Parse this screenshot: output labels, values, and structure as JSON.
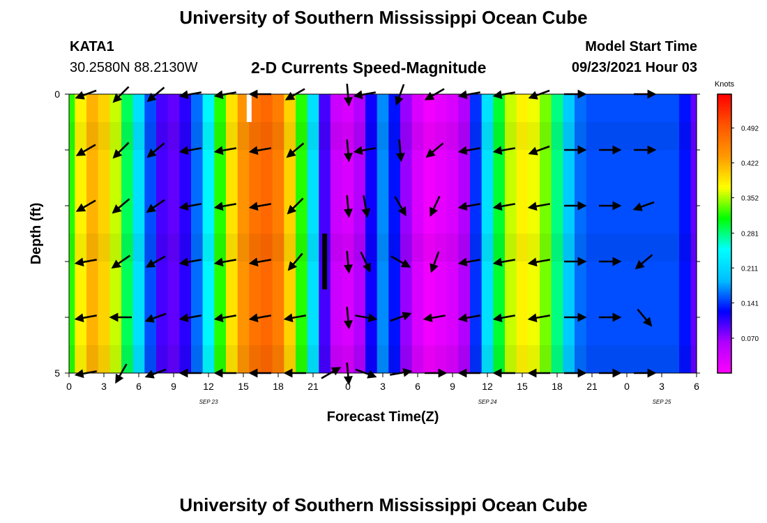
{
  "header": {
    "title": "University of Southern Mississippi Ocean Cube",
    "station": "KATA1",
    "coordinates": "30.2580N  88.2130W",
    "subtitle": "2-D Currents Speed-Magnitude",
    "model_start_label": "Model Start Time",
    "model_start_value": "09/23/2021 Hour 03"
  },
  "footer": {
    "title": "University of Southern Mississippi Ocean Cube"
  },
  "colors": {
    "scale": [
      "#ff00ff",
      "#b000ff",
      "#0000ff",
      "#00bfff",
      "#00ffff",
      "#00ff00",
      "#ffff00",
      "#ff9900",
      "#ff5500",
      "#ff0000"
    ],
    "arrow": "#000000"
  },
  "chart_data": {
    "type": "heatmap",
    "title": "2-D Currents Speed-Magnitude",
    "xlabel": "Forecast Time(Z)",
    "ylabel": "Depth (ft)",
    "colorbar_label": "Knots",
    "x_tick_labels": [
      "0",
      "3",
      "6",
      "9",
      "12",
      "15",
      "18",
      "21",
      "0",
      "3",
      "6",
      "9",
      "12",
      "15",
      "18",
      "21",
      "0",
      "3",
      "6"
    ],
    "date_labels": [
      {
        "label": "SEP 23",
        "hour": 12
      },
      {
        "label": "SEP 24",
        "hour": 36
      },
      {
        "label": "SEP 25",
        "hour": 51
      }
    ],
    "y_tick_labels": [
      "0",
      "5"
    ],
    "ylim": [
      0,
      5
    ],
    "xlim_hours": [
      0,
      54
    ],
    "colorbar_ticks": [
      0.07,
      0.141,
      0.211,
      0.281,
      0.352,
      0.422,
      0.492
    ],
    "colorbar_range": [
      0.0,
      0.56
    ],
    "hours": [
      0,
      1,
      2,
      3,
      4,
      5,
      6,
      7,
      8,
      9,
      10,
      11,
      12,
      13,
      14,
      15,
      16,
      17,
      18,
      19,
      20,
      21,
      22,
      23,
      24,
      25,
      26,
      27,
      28,
      29,
      30,
      31,
      32,
      33,
      34,
      35,
      36,
      37,
      38,
      39,
      40,
      41,
      42,
      43,
      44,
      45,
      46,
      47,
      48,
      49,
      50,
      51,
      52,
      53,
      54
    ],
    "speed_knots": [
      0.32,
      0.38,
      0.42,
      0.4,
      0.36,
      0.29,
      0.22,
      0.15,
      0.1,
      0.09,
      0.11,
      0.16,
      0.24,
      0.32,
      0.39,
      0.44,
      0.47,
      0.48,
      0.46,
      0.4,
      0.32,
      0.22,
      0.1,
      0.04,
      0.03,
      0.06,
      0.12,
      0.17,
      0.13,
      0.07,
      0.03,
      0.01,
      0.02,
      0.03,
      0.06,
      0.14,
      0.22,
      0.3,
      0.36,
      0.38,
      0.37,
      0.34,
      0.28,
      0.2,
      0.16,
      0.15,
      0.15,
      0.15,
      0.15,
      0.15,
      0.15,
      0.15,
      0.15,
      0.13,
      0.09
    ],
    "vector_hours": [
      1.5,
      4.5,
      7.5,
      10.5,
      13.5,
      16.5,
      19.5,
      22.5,
      24,
      25.5,
      28.5,
      31.5,
      34.5,
      37.5,
      40.5,
      43.5,
      46.5,
      49.5,
      52.5
    ],
    "vector_depths": [
      0,
      1,
      2,
      3,
      4,
      5
    ],
    "vector_angles_deg": [
      [
        200,
        210,
        210,
        190,
        190,
        190
      ],
      [
        225,
        225,
        220,
        215,
        180,
        240
      ],
      [
        220,
        220,
        215,
        210,
        200,
        200
      ],
      [
        190,
        190,
        190,
        190,
        190,
        180
      ],
      [
        190,
        190,
        190,
        190,
        190,
        180
      ],
      [
        180,
        190,
        190,
        190,
        190,
        180
      ],
      [
        210,
        220,
        225,
        230,
        190,
        180
      ],
      [
        null,
        null,
        null,
        null,
        null,
        30
      ],
      [
        275,
        275,
        275,
        275,
        275,
        275
      ],
      [
        190,
        190,
        280,
        295,
        350,
        340
      ],
      [
        250,
        275,
        300,
        330,
        20,
        10
      ],
      [
        210,
        220,
        245,
        250,
        190,
        0
      ],
      [
        190,
        190,
        190,
        190,
        190,
        180
      ],
      [
        190,
        190,
        190,
        190,
        190,
        180
      ],
      [
        200,
        200,
        190,
        190,
        190,
        180
      ],
      [
        0,
        0,
        0,
        0,
        0,
        0
      ],
      [
        null,
        0,
        0,
        0,
        0,
        0
      ],
      [
        0,
        0,
        200,
        220,
        310,
        0
      ],
      [
        null,
        null,
        null,
        null,
        null,
        null
      ]
    ],
    "markers": [
      {
        "hour": 15.5,
        "depth_top": 0.0,
        "depth_bottom": 0.5,
        "color": "#ffffff"
      },
      {
        "hour": 22.0,
        "depth_top": 2.5,
        "depth_bottom": 3.5,
        "color": "#000000"
      }
    ]
  }
}
